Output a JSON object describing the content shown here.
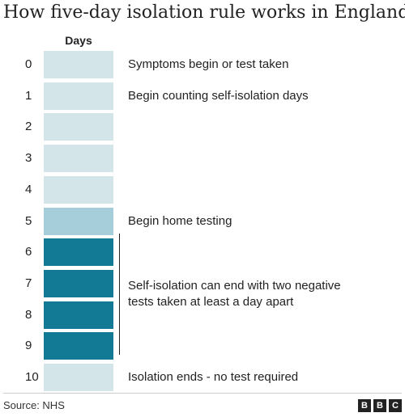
{
  "title": "How five-day isolation rule works in England",
  "column_header": "Days",
  "colors": {
    "light": "#d4e5ea",
    "medium": "#a6cdda",
    "dark": "#137a96",
    "text": "#222222"
  },
  "days": [
    {
      "num": "0",
      "label": "Symptoms begin or test taken",
      "shade": "light"
    },
    {
      "num": "1",
      "label": "Begin counting self-isolation days",
      "shade": "light"
    },
    {
      "num": "2",
      "label": "",
      "shade": "light"
    },
    {
      "num": "3",
      "label": "",
      "shade": "light"
    },
    {
      "num": "4",
      "label": "",
      "shade": "light"
    },
    {
      "num": "5",
      "label": "Begin home testing",
      "shade": "medium"
    },
    {
      "num": "6",
      "label": "",
      "shade": "dark"
    },
    {
      "num": "7",
      "label": "",
      "shade": "dark"
    },
    {
      "num": "8",
      "label": "",
      "shade": "dark"
    },
    {
      "num": "9",
      "label": "",
      "shade": "dark"
    },
    {
      "num": "10",
      "label": "Isolation ends - no test required",
      "shade": "light"
    }
  ],
  "bracket_annotation": {
    "line1": "Self-isolation can end with two negative",
    "line2": "tests taken at least a day apart"
  },
  "source": "Source: NHS",
  "logo": [
    "B",
    "B",
    "C"
  ]
}
